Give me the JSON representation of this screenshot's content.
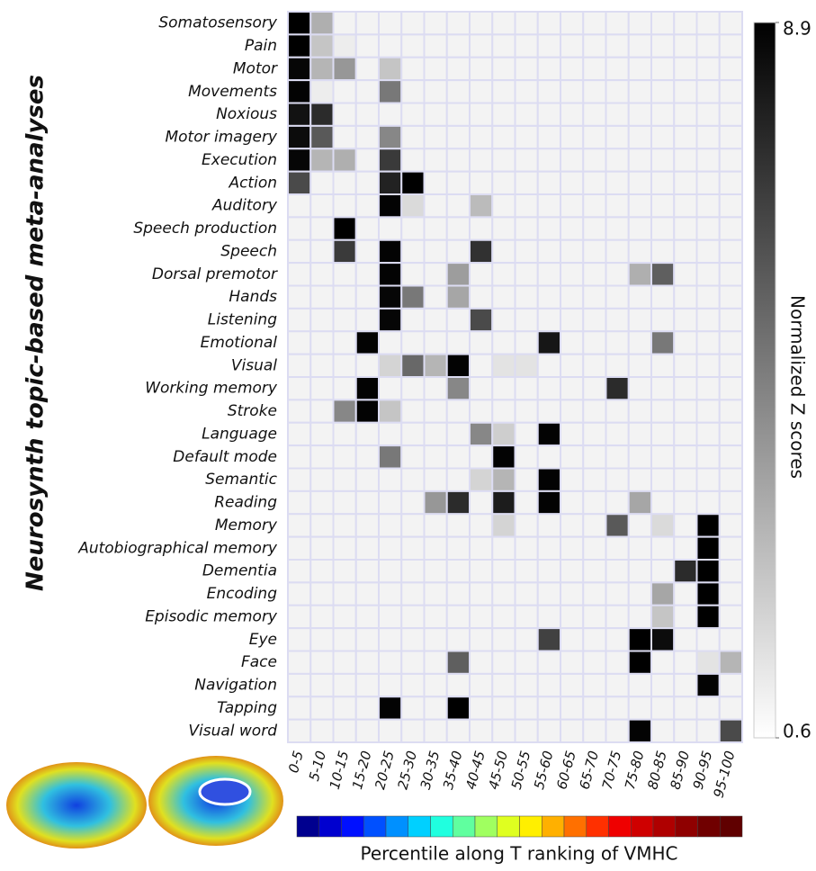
{
  "chart_data": {
    "type": "heatmap",
    "ylabel": "Neurosynth topic-based meta-analyses",
    "xlabel": "Percentile along T ranking of VMHC",
    "zlabel": "Normalized Z scores",
    "zlim": [
      0.6,
      8.9
    ],
    "zticks": [
      8.9,
      0.6
    ],
    "categories": [
      "0-5",
      "5-10",
      "10-15",
      "15-20",
      "20-25",
      "25-30",
      "30-35",
      "35-40",
      "40-45",
      "45-50",
      "50-55",
      "55-60",
      "60-65",
      "65-70",
      "70-75",
      "75-80",
      "80-85",
      "85-90",
      "90-95",
      "95-100"
    ],
    "rows": [
      "Somatosensory",
      "Pain",
      "Motor",
      "Movements",
      "Noxious",
      "Motor imagery",
      "Execution",
      "Action",
      "Auditory",
      "Speech production",
      "Speech",
      "Dorsal premotor",
      "Hands",
      "Listening",
      "Emotional",
      "Visual",
      "Working memory",
      "Stroke",
      "Language",
      "Default mode",
      "Semantic",
      "Reading",
      "Memory",
      "Autobiographical memory",
      "Dementia",
      "Encoding",
      "Episodic memory",
      "Eye",
      "Face",
      "Navigation",
      "Tapping",
      "Visual word"
    ],
    "values": [
      [
        8.9,
        3.2,
        1,
        1,
        1,
        1,
        1,
        1,
        1,
        1,
        1,
        1,
        1,
        1,
        1,
        1,
        1,
        1,
        1,
        1
      ],
      [
        8.9,
        2.5,
        1.2,
        1,
        1,
        1,
        1,
        1,
        1,
        1,
        1,
        1,
        1,
        1,
        1,
        1,
        1,
        1,
        1,
        1
      ],
      [
        8.7,
        3,
        4,
        1,
        2.5,
        1,
        1,
        1,
        1,
        1,
        1,
        1,
        1,
        1,
        1,
        1,
        1,
        1,
        1,
        1
      ],
      [
        8.8,
        1.2,
        1,
        1,
        5,
        1,
        1,
        1,
        1,
        1,
        1,
        1,
        1,
        1,
        1,
        1,
        1,
        1,
        1,
        1
      ],
      [
        8.3,
        7.5,
        1,
        1,
        1,
        1,
        1,
        1,
        1,
        1,
        1,
        1,
        1,
        1,
        1,
        1,
        1,
        1,
        1,
        1
      ],
      [
        8.5,
        6,
        1,
        1,
        4.5,
        1,
        1,
        1,
        1,
        1,
        1,
        1,
        1,
        1,
        1,
        1,
        1,
        1,
        1,
        1
      ],
      [
        8.7,
        3,
        3.2,
        1,
        7,
        1,
        1,
        1,
        1,
        1,
        1,
        1,
        1,
        1,
        1,
        1,
        1,
        1,
        1,
        1
      ],
      [
        6.5,
        1,
        1,
        1,
        7.8,
        8.9,
        1,
        1,
        1,
        1,
        1,
        1,
        1,
        1,
        1,
        1,
        1,
        1,
        1,
        1
      ],
      [
        1,
        1,
        1,
        1,
        8.8,
        1.8,
        1,
        1,
        2.8,
        1,
        1,
        1,
        1,
        1,
        1,
        1,
        1,
        1,
        1,
        1
      ],
      [
        1,
        1,
        8.9,
        1,
        1,
        1,
        1,
        1,
        1,
        1,
        1,
        1,
        1,
        1,
        1,
        1,
        1,
        1,
        1,
        1
      ],
      [
        1,
        1,
        7,
        1,
        8.8,
        1,
        1,
        1,
        7.3,
        1,
        1,
        1,
        1,
        1,
        1,
        1,
        1,
        1,
        1,
        1
      ],
      [
        1,
        1,
        1,
        1,
        8.8,
        1,
        1,
        3.8,
        1,
        1,
        1,
        1,
        1,
        1,
        1,
        3.2,
        5.8,
        1,
        1,
        1
      ],
      [
        1,
        1,
        1,
        1,
        8.7,
        5,
        1,
        3.5,
        1,
        1,
        1,
        1,
        1,
        1,
        1,
        1,
        1,
        1,
        1,
        1
      ],
      [
        1,
        1,
        1,
        1,
        8.7,
        1,
        1,
        1,
        6.5,
        1,
        1,
        1,
        1,
        1,
        1,
        1,
        1,
        1,
        1,
        1
      ],
      [
        1,
        1,
        1,
        8.8,
        1,
        1,
        1,
        1,
        1,
        1,
        1,
        8.2,
        1,
        1,
        1,
        1,
        5,
        1,
        1,
        1
      ],
      [
        1,
        1,
        1,
        1,
        2,
        5.5,
        3,
        8.8,
        1,
        1.5,
        1.5,
        1,
        1,
        1,
        1,
        1,
        1,
        1,
        1,
        1
      ],
      [
        1,
        1,
        1,
        8.8,
        1,
        1,
        1,
        4.5,
        1,
        1,
        1,
        1,
        1,
        1,
        7.5,
        1,
        1,
        1,
        1,
        1
      ],
      [
        1,
        1,
        4.5,
        8.8,
        2.5,
        1,
        1,
        1,
        1,
        1,
        1,
        1,
        1,
        1,
        1,
        1,
        1,
        1,
        1,
        1
      ],
      [
        1,
        1,
        1,
        1,
        1,
        1,
        1,
        1,
        4.5,
        2.2,
        1,
        8.8,
        1,
        1,
        1,
        1,
        1,
        1,
        1,
        1
      ],
      [
        1,
        1,
        1,
        1,
        5,
        1,
        1,
        1,
        1,
        8.8,
        1,
        1,
        1,
        1,
        1,
        1,
        1,
        1,
        1,
        1
      ],
      [
        1,
        1,
        1,
        1,
        1,
        1,
        1,
        1,
        2,
        3,
        1,
        8.8,
        1,
        1,
        1,
        1,
        1,
        1,
        1,
        1
      ],
      [
        1,
        1,
        1,
        1,
        1,
        1,
        4,
        7.5,
        1,
        8,
        1,
        8.8,
        1,
        1,
        1,
        3.5,
        1,
        1,
        1,
        1
      ],
      [
        1,
        1,
        1,
        1,
        1,
        1,
        1,
        1,
        1,
        2,
        1,
        1,
        1,
        1,
        6,
        1,
        1.8,
        1,
        8.9,
        1
      ],
      [
        1,
        1,
        1,
        1,
        1,
        1,
        1,
        1,
        1,
        1,
        1,
        1,
        1,
        1,
        1,
        1,
        1,
        1,
        8.9,
        1
      ],
      [
        1,
        1,
        1,
        1,
        1,
        1,
        1,
        1,
        1,
        1,
        1,
        1,
        1,
        1,
        1,
        1,
        1,
        7.5,
        8.9,
        1
      ],
      [
        1,
        1,
        1,
        1,
        1,
        1,
        1,
        1,
        1,
        1,
        1,
        1,
        1,
        1,
        1,
        1,
        3.5,
        1,
        8.9,
        1
      ],
      [
        1,
        1,
        1,
        1,
        1,
        1,
        1,
        1,
        1,
        1,
        1,
        1,
        1,
        1,
        1,
        1,
        2.5,
        1,
        8.9,
        1
      ],
      [
        1,
        1,
        1,
        1,
        1,
        1,
        1,
        1,
        1,
        1,
        1,
        6.8,
        1,
        1,
        1,
        8.9,
        8.5,
        1,
        1,
        1
      ],
      [
        1,
        1,
        1,
        1,
        1,
        1,
        1,
        5.8,
        1,
        1,
        1,
        1,
        1,
        1,
        1,
        8.9,
        1,
        1,
        1.5,
        3
      ],
      [
        1,
        1,
        1,
        1,
        1,
        1,
        1,
        1,
        1,
        1,
        1,
        1,
        1,
        1,
        1,
        1,
        1,
        1,
        8.8,
        1
      ],
      [
        1,
        1,
        1,
        1,
        8.8,
        1,
        1,
        8.9,
        1,
        1,
        1,
        1,
        1,
        1,
        1,
        1,
        1,
        1,
        1,
        1
      ],
      [
        1,
        1,
        1,
        1,
        1,
        1,
        1,
        1,
        1,
        1,
        1,
        1,
        1,
        1,
        1,
        8.8,
        1,
        1,
        1,
        6.5
      ]
    ]
  }
}
